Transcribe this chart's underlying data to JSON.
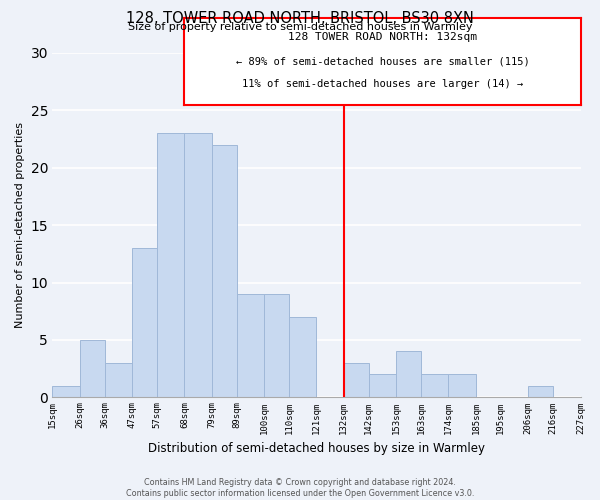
{
  "title": "128, TOWER ROAD NORTH, BRISTOL, BS30 8XN",
  "subtitle": "Size of property relative to semi-detached houses in Warmley",
  "xlabel": "Distribution of semi-detached houses by size in Warmley",
  "ylabel": "Number of semi-detached properties",
  "bar_left_edges": [
    15,
    26,
    36,
    47,
    57,
    68,
    79,
    89,
    100,
    110,
    121,
    132,
    142,
    153,
    163,
    174,
    185,
    195,
    206,
    216
  ],
  "bar_widths": [
    11,
    10,
    11,
    10,
    11,
    11,
    10,
    11,
    10,
    11,
    11,
    10,
    11,
    10,
    11,
    11,
    10,
    11,
    10,
    11
  ],
  "bar_heights": [
    1,
    5,
    3,
    13,
    23,
    23,
    22,
    9,
    9,
    7,
    0,
    3,
    2,
    4,
    2,
    2,
    0,
    0,
    1,
    0
  ],
  "bar_color": "#c8d9f0",
  "bar_edgecolor": "#a0b8d8",
  "vline_x": 132,
  "vline_color": "red",
  "xlim": [
    15,
    227
  ],
  "ylim": [
    0,
    30
  ],
  "yticks": [
    0,
    5,
    10,
    15,
    20,
    25,
    30
  ],
  "xtick_labels": [
    "15sqm",
    "26sqm",
    "36sqm",
    "47sqm",
    "57sqm",
    "68sqm",
    "79sqm",
    "89sqm",
    "100sqm",
    "110sqm",
    "121sqm",
    "132sqm",
    "142sqm",
    "153sqm",
    "163sqm",
    "174sqm",
    "185sqm",
    "195sqm",
    "206sqm",
    "216sqm",
    "227sqm"
  ],
  "xtick_positions": [
    15,
    26,
    36,
    47,
    57,
    68,
    79,
    89,
    100,
    110,
    121,
    132,
    142,
    153,
    163,
    174,
    185,
    195,
    206,
    216,
    227
  ],
  "annotation_title": "128 TOWER ROAD NORTH: 132sqm",
  "annotation_line1": "← 89% of semi-detached houses are smaller (115)",
  "annotation_line2": "11% of semi-detached houses are larger (14) →",
  "footer_line1": "Contains HM Land Registry data © Crown copyright and database right 2024.",
  "footer_line2": "Contains public sector information licensed under the Open Government Licence v3.0.",
  "background_color": "#eef2f9",
  "grid_color": "#d8dde8"
}
